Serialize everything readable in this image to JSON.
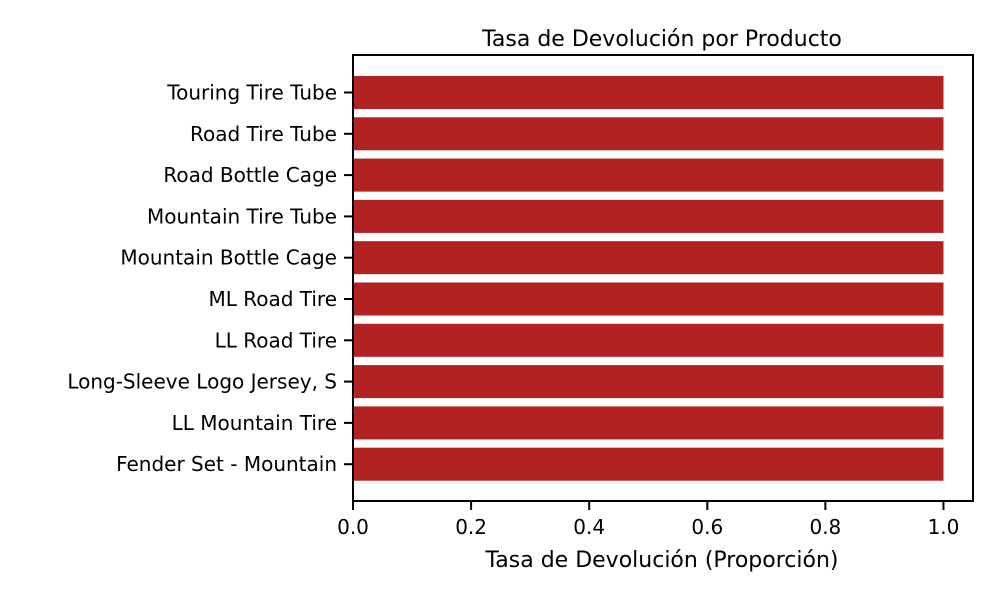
{
  "chart_data": {
    "type": "bar",
    "orientation": "horizontal",
    "title": "Tasa de Devolución por Producto",
    "xlabel": "Tasa de Devolución (Proporción)",
    "ylabel": "",
    "categories": [
      "Touring Tire Tube",
      "Road Tire Tube",
      "Road Bottle Cage",
      "Mountain Tire Tube",
      "Mountain Bottle Cage",
      "ML Road Tire",
      "LL Road Tire",
      "Long-Sleeve Logo Jersey, S",
      "LL Mountain Tire",
      "Fender Set - Mountain"
    ],
    "values": [
      1.0,
      1.0,
      1.0,
      1.0,
      1.0,
      1.0,
      1.0,
      1.0,
      1.0,
      1.0
    ],
    "xlim": [
      0,
      1.05
    ],
    "xticks": [
      0.0,
      0.2,
      0.4,
      0.6,
      0.8,
      1.0
    ],
    "xtick_labels": [
      "0.0",
      "0.2",
      "0.4",
      "0.6",
      "0.8",
      "1.0"
    ],
    "grid": false,
    "legend": "none",
    "bar_color": "#b22222"
  }
}
